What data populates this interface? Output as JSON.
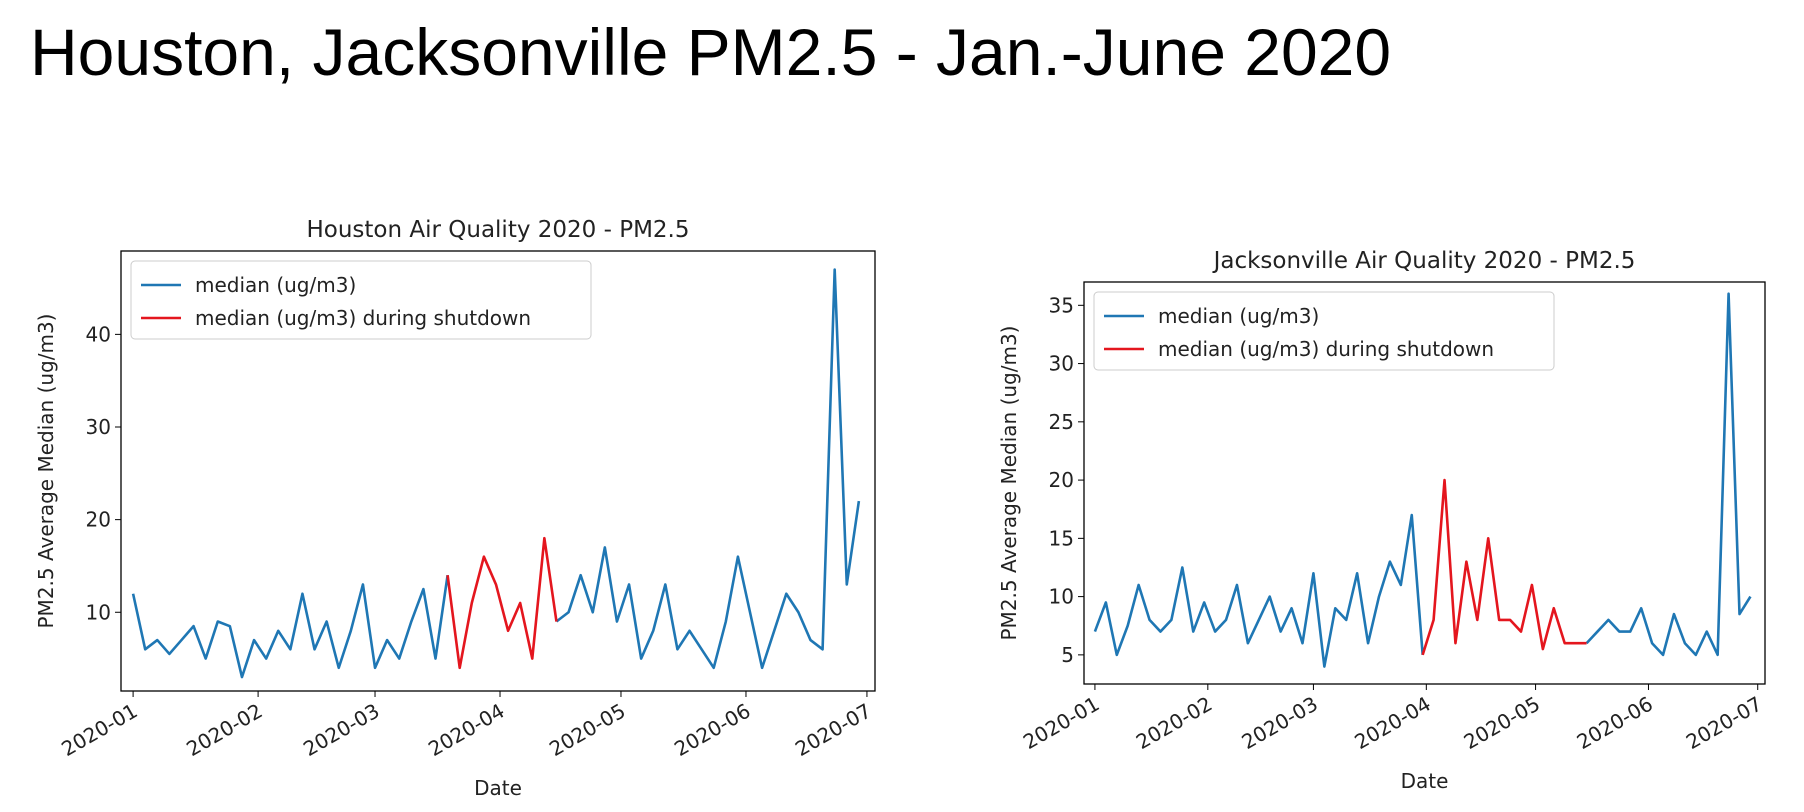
{
  "title": "Houston, Jacksonville PM2.5 - Jan.-June 2020",
  "chart_data": [
    {
      "type": "line",
      "title": "Houston Air Quality 2020 - PM2.5",
      "x_label": "Date",
      "y_label": "PM2.5 Average Median (ug/m3)",
      "x": [
        0,
        3,
        6,
        9,
        12,
        15,
        18,
        21,
        24,
        27,
        30,
        33,
        36,
        39,
        42,
        45,
        48,
        51,
        54,
        57,
        60,
        63,
        66,
        69,
        72,
        75,
        78,
        81,
        84,
        87,
        90,
        93,
        96,
        99,
        102,
        105,
        108,
        111,
        114,
        117,
        120,
        123,
        126,
        129,
        132,
        135,
        138,
        141,
        144,
        147,
        150,
        153,
        156,
        159,
        162,
        165,
        168,
        171,
        174,
        177,
        180
      ],
      "series": [
        {
          "name": "median (ug/m3)",
          "color": "#1f77b4",
          "values": [
            12,
            6,
            7,
            5.5,
            7,
            8.5,
            5,
            9,
            8.5,
            3,
            7,
            5,
            8,
            6,
            12,
            6,
            9,
            4,
            8,
            13,
            4,
            7,
            5,
            9,
            12.5,
            5,
            14,
            null,
            null,
            null,
            null,
            null,
            null,
            null,
            null,
            9,
            10,
            14,
            10,
            17,
            9,
            13,
            5,
            8,
            13,
            6,
            8,
            6,
            4,
            9,
            16,
            10,
            4,
            8,
            12,
            10,
            7,
            6,
            47,
            13,
            22
          ]
        },
        {
          "name": "median (ug/m3) during shutdown",
          "color": "#e4161e",
          "values": [
            null,
            null,
            null,
            null,
            null,
            null,
            null,
            null,
            null,
            null,
            null,
            null,
            null,
            null,
            null,
            null,
            null,
            null,
            null,
            null,
            null,
            null,
            null,
            null,
            null,
            null,
            14,
            4,
            11,
            16,
            13,
            8,
            11,
            5,
            18,
            9,
            null,
            null,
            null,
            null,
            null,
            null,
            null,
            null,
            null,
            null,
            null,
            null,
            null,
            null,
            null,
            null,
            null,
            null,
            null,
            null,
            null,
            null,
            null,
            null,
            null
          ]
        }
      ],
      "xlim": [
        -3,
        184
      ],
      "xticks": [
        {
          "value": 0,
          "label": "2020-01"
        },
        {
          "value": 31,
          "label": "2020-02"
        },
        {
          "value": 60,
          "label": "2020-03"
        },
        {
          "value": 91,
          "label": "2020-04"
        },
        {
          "value": 121,
          "label": "2020-05"
        },
        {
          "value": 152,
          "label": "2020-06"
        },
        {
          "value": 182,
          "label": "2020-07"
        }
      ],
      "ylim": [
        1.5,
        49
      ],
      "yticks": [
        10,
        20,
        30,
        40
      ],
      "legend": "upper left"
    },
    {
      "type": "line",
      "title": "Jacksonville Air Quality 2020 - PM2.5",
      "x_label": "Date",
      "y_label": "PM2.5 Average Median (ug/m3)",
      "x": [
        0,
        3,
        6,
        9,
        12,
        15,
        18,
        21,
        24,
        27,
        30,
        33,
        36,
        39,
        42,
        45,
        48,
        51,
        54,
        57,
        60,
        63,
        66,
        69,
        72,
        75,
        78,
        81,
        84,
        87,
        90,
        93,
        96,
        99,
        102,
        105,
        108,
        111,
        114,
        117,
        120,
        123,
        126,
        129,
        132,
        135,
        138,
        141,
        144,
        147,
        150,
        153,
        156,
        159,
        162,
        165,
        168,
        171,
        174,
        177,
        180
      ],
      "series": [
        {
          "name": "median (ug/m3)",
          "color": "#1f77b4",
          "values": [
            7,
            9.5,
            5,
            7.5,
            11,
            8,
            7,
            8,
            12.5,
            7,
            9.5,
            7,
            8,
            11,
            6,
            8,
            10,
            7,
            9,
            6,
            12,
            4,
            9,
            8,
            12,
            6,
            10,
            13,
            11,
            17,
            5,
            null,
            null,
            null,
            null,
            null,
            null,
            null,
            null,
            null,
            null,
            null,
            null,
            null,
            null,
            6,
            7,
            8,
            7,
            7,
            9,
            6,
            5,
            8.5,
            6,
            5,
            7,
            5,
            36,
            8.5,
            10
          ]
        },
        {
          "name": "median (ug/m3) during shutdown",
          "color": "#e4161e",
          "values": [
            null,
            null,
            null,
            null,
            null,
            null,
            null,
            null,
            null,
            null,
            null,
            null,
            null,
            null,
            null,
            null,
            null,
            null,
            null,
            null,
            null,
            null,
            null,
            null,
            null,
            null,
            null,
            null,
            null,
            null,
            5,
            8,
            20,
            6,
            13,
            8,
            15,
            8,
            8,
            7,
            11,
            5.5,
            9,
            6,
            6,
            6,
            null,
            null,
            null,
            null,
            null,
            null,
            null,
            null,
            null,
            null,
            null,
            null,
            null,
            null,
            null
          ]
        }
      ],
      "xlim": [
        -3,
        184
      ],
      "xticks": [
        {
          "value": 0,
          "label": "2020-01"
        },
        {
          "value": 31,
          "label": "2020-02"
        },
        {
          "value": 60,
          "label": "2020-03"
        },
        {
          "value": 91,
          "label": "2020-04"
        },
        {
          "value": 121,
          "label": "2020-05"
        },
        {
          "value": 152,
          "label": "2020-06"
        },
        {
          "value": 182,
          "label": "2020-07"
        }
      ],
      "ylim": [
        2.5,
        37
      ],
      "yticks": [
        5,
        10,
        15,
        20,
        25,
        30,
        35
      ],
      "legend": "upper left"
    }
  ]
}
